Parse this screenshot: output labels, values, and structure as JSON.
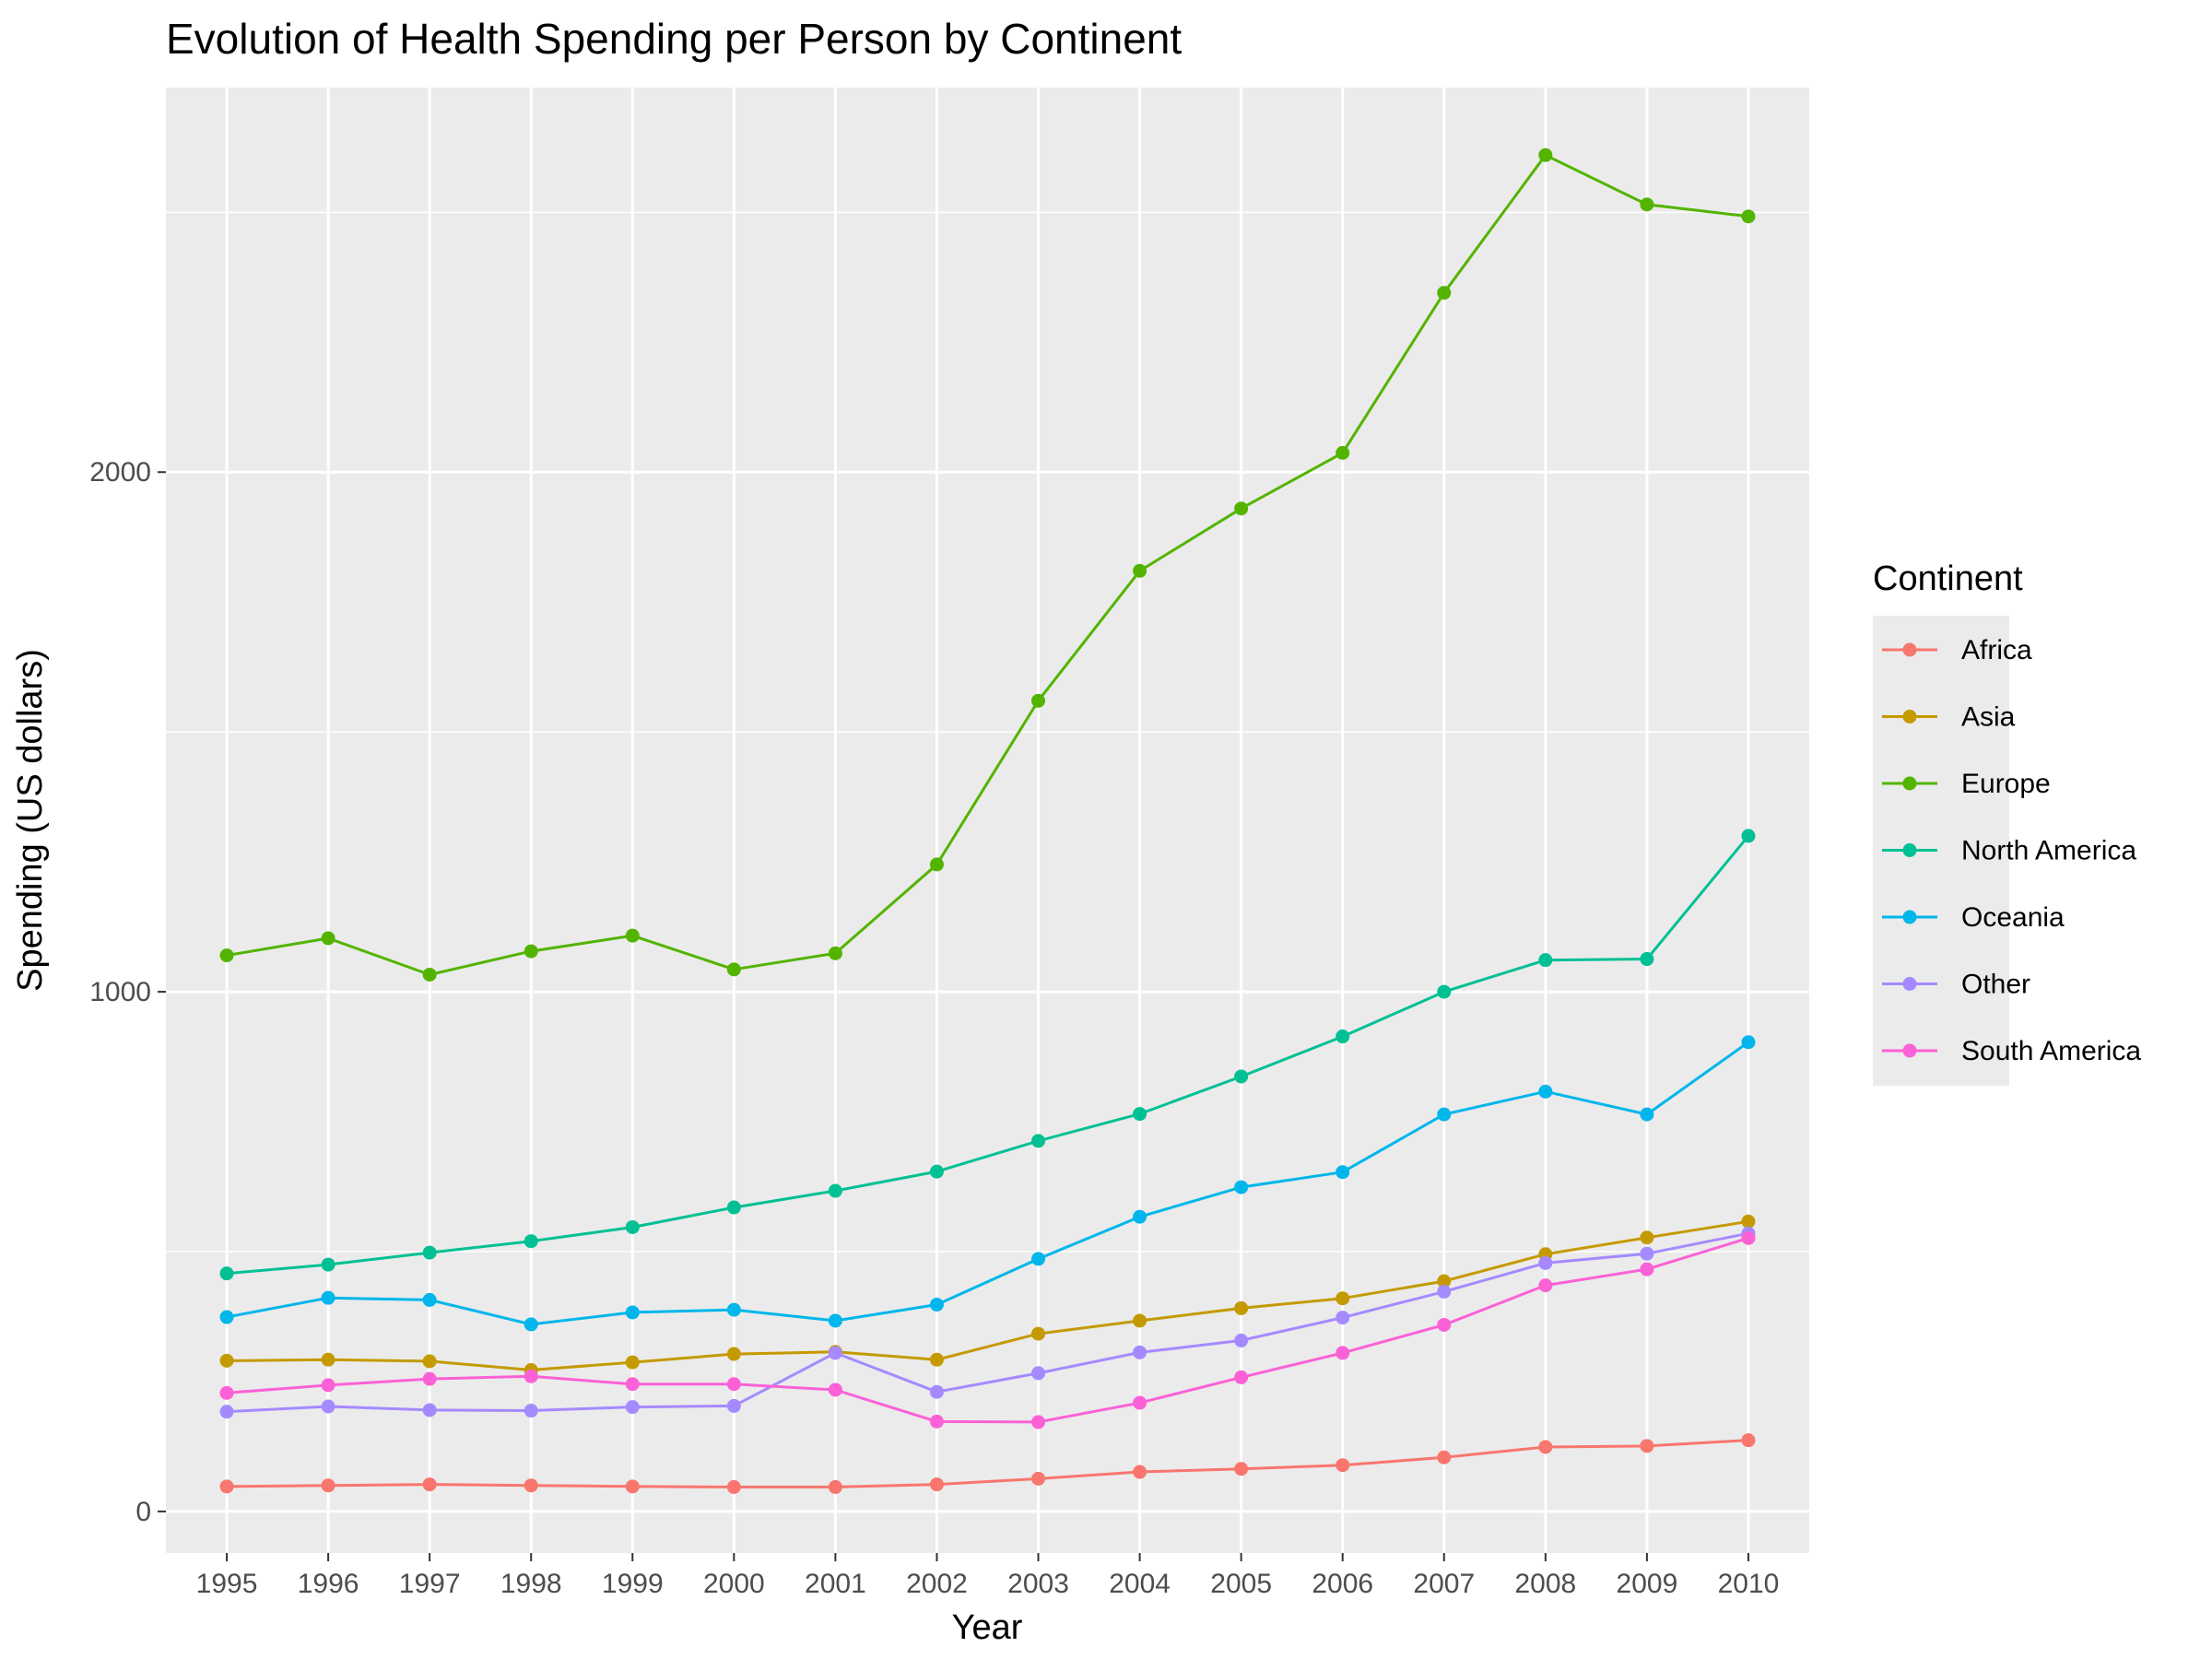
{
  "chart_data": {
    "type": "line",
    "title": "Evolution of Health Spending per Person by Continent",
    "xlabel": "Year",
    "ylabel": "Spending (US dollars)",
    "x": [
      1995,
      1996,
      1997,
      1998,
      1999,
      2000,
      2001,
      2002,
      2003,
      2004,
      2005,
      2006,
      2007,
      2008,
      2009,
      2010
    ],
    "x_tick_labels": [
      "1995",
      "1996",
      "1997",
      "1998",
      "1999",
      "2000",
      "2001",
      "2002",
      "2003",
      "2004",
      "2005",
      "2006",
      "2007",
      "2008",
      "2009",
      "2010"
    ],
    "y_ticks": [
      0,
      1000,
      2000
    ],
    "y_tick_labels": [
      "0",
      "1000",
      "2000"
    ],
    "ylim": [
      -80,
      2740
    ],
    "grid": true,
    "legend": {
      "title": "Continent",
      "placement": "right"
    },
    "series": [
      {
        "name": "Africa",
        "color": "#F8766D",
        "values": [
          48,
          50,
          52,
          50,
          48,
          47,
          47,
          52,
          63,
          76,
          82,
          89,
          104,
          124,
          126,
          137
        ]
      },
      {
        "name": "Asia",
        "color": "#C49A00",
        "values": [
          290,
          292,
          289,
          272,
          287,
          303,
          307,
          292,
          342,
          367,
          391,
          410,
          443,
          495,
          527,
          558
        ]
      },
      {
        "name": "Europe",
        "color": "#53B400",
        "values": [
          1070,
          1103,
          1033,
          1078,
          1108,
          1043,
          1074,
          1245,
          1560,
          1810,
          1930,
          2037,
          2345,
          2610,
          2515,
          2492
        ]
      },
      {
        "name": "North America",
        "color": "#00C094",
        "values": [
          458,
          475,
          498,
          520,
          547,
          585,
          617,
          654,
          713,
          765,
          837,
          914,
          1000,
          1061,
          1063,
          1300
        ]
      },
      {
        "name": "Oceania",
        "color": "#00B6EB",
        "values": [
          374,
          411,
          407,
          360,
          383,
          388,
          367,
          398,
          486,
          567,
          624,
          653,
          764,
          808,
          764,
          903
        ]
      },
      {
        "name": "Other",
        "color": "#A58AFF",
        "values": [
          192,
          202,
          195,
          194,
          201,
          203,
          305,
          230,
          266,
          306,
          329,
          373,
          423,
          478,
          496,
          535
        ]
      },
      {
        "name": "South America",
        "color": "#FB61D7",
        "values": [
          228,
          243,
          255,
          260,
          245,
          245,
          234,
          173,
          172,
          209,
          258,
          305,
          359,
          435,
          466,
          526
        ]
      }
    ]
  }
}
